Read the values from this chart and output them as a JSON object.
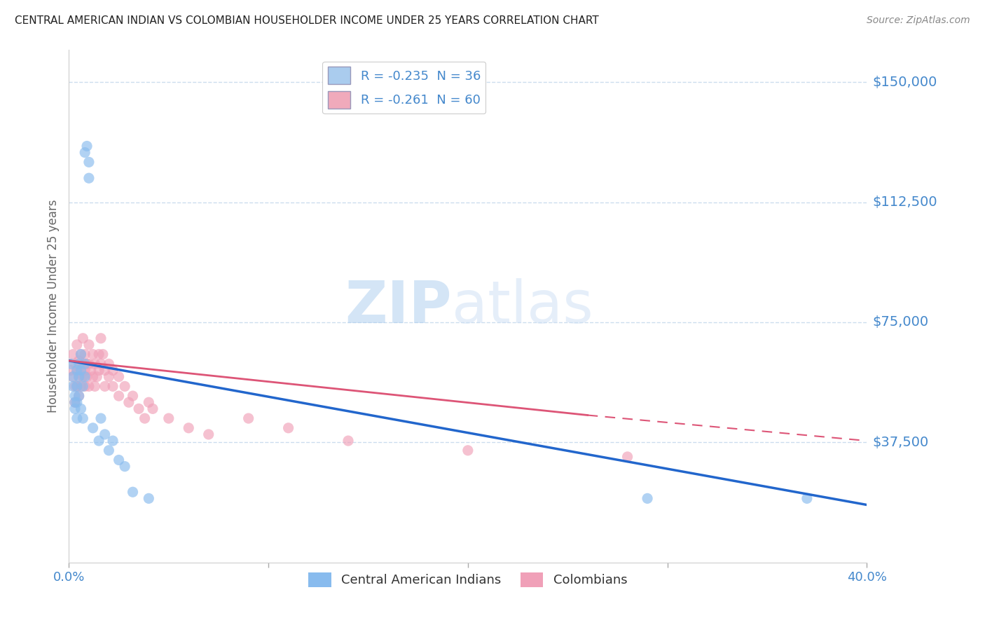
{
  "title": "CENTRAL AMERICAN INDIAN VS COLOMBIAN HOUSEHOLDER INCOME UNDER 25 YEARS CORRELATION CHART",
  "source": "Source: ZipAtlas.com",
  "ylabel": "Householder Income Under 25 years",
  "yticks": [
    0,
    37500,
    75000,
    112500,
    150000
  ],
  "ytick_labels": [
    "",
    "$37,500",
    "$75,000",
    "$112,500",
    "$150,000"
  ],
  "xlim": [
    0.0,
    0.4
  ],
  "ylim": [
    0,
    160000
  ],
  "legend_entries": [
    {
      "label": "R = -0.235  N = 36",
      "color": "#aaccee"
    },
    {
      "label": "R = -0.261  N = 60",
      "color": "#f0aabb"
    }
  ],
  "legend_bottom": [
    "Central American Indians",
    "Colombians"
  ],
  "watermark_zip": "ZIP",
  "watermark_atlas": "atlas",
  "blue_scatter": [
    [
      0.001,
      62000
    ],
    [
      0.002,
      58000
    ],
    [
      0.002,
      55000
    ],
    [
      0.003,
      52000
    ],
    [
      0.003,
      50000
    ],
    [
      0.003,
      48000
    ],
    [
      0.004,
      60000
    ],
    [
      0.004,
      55000
    ],
    [
      0.004,
      50000
    ],
    [
      0.004,
      45000
    ],
    [
      0.005,
      62000
    ],
    [
      0.005,
      58000
    ],
    [
      0.005,
      52000
    ],
    [
      0.006,
      65000
    ],
    [
      0.006,
      60000
    ],
    [
      0.006,
      48000
    ],
    [
      0.007,
      55000
    ],
    [
      0.007,
      45000
    ],
    [
      0.008,
      62000
    ],
    [
      0.008,
      58000
    ],
    [
      0.008,
      128000
    ],
    [
      0.009,
      130000
    ],
    [
      0.01,
      120000
    ],
    [
      0.01,
      125000
    ],
    [
      0.012,
      42000
    ],
    [
      0.015,
      38000
    ],
    [
      0.016,
      45000
    ],
    [
      0.018,
      40000
    ],
    [
      0.02,
      35000
    ],
    [
      0.022,
      38000
    ],
    [
      0.025,
      32000
    ],
    [
      0.028,
      30000
    ],
    [
      0.032,
      22000
    ],
    [
      0.04,
      20000
    ],
    [
      0.29,
      20000
    ],
    [
      0.37,
      20000
    ]
  ],
  "pink_scatter": [
    [
      0.001,
      60000
    ],
    [
      0.002,
      65000
    ],
    [
      0.002,
      58000
    ],
    [
      0.003,
      62000
    ],
    [
      0.003,
      55000
    ],
    [
      0.003,
      50000
    ],
    [
      0.004,
      68000
    ],
    [
      0.004,
      60000
    ],
    [
      0.004,
      55000
    ],
    [
      0.005,
      63000
    ],
    [
      0.005,
      58000
    ],
    [
      0.005,
      52000
    ],
    [
      0.006,
      65000
    ],
    [
      0.006,
      60000
    ],
    [
      0.006,
      55000
    ],
    [
      0.007,
      70000
    ],
    [
      0.007,
      62000
    ],
    [
      0.007,
      58000
    ],
    [
      0.008,
      65000
    ],
    [
      0.008,
      60000
    ],
    [
      0.008,
      55000
    ],
    [
      0.009,
      62000
    ],
    [
      0.009,
      58000
    ],
    [
      0.01,
      68000
    ],
    [
      0.01,
      62000
    ],
    [
      0.01,
      55000
    ],
    [
      0.011,
      60000
    ],
    [
      0.012,
      65000
    ],
    [
      0.012,
      58000
    ],
    [
      0.013,
      62000
    ],
    [
      0.013,
      55000
    ],
    [
      0.014,
      58000
    ],
    [
      0.015,
      65000
    ],
    [
      0.015,
      60000
    ],
    [
      0.016,
      70000
    ],
    [
      0.016,
      62000
    ],
    [
      0.017,
      65000
    ],
    [
      0.018,
      60000
    ],
    [
      0.018,
      55000
    ],
    [
      0.02,
      62000
    ],
    [
      0.02,
      58000
    ],
    [
      0.022,
      60000
    ],
    [
      0.022,
      55000
    ],
    [
      0.025,
      58000
    ],
    [
      0.025,
      52000
    ],
    [
      0.028,
      55000
    ],
    [
      0.03,
      50000
    ],
    [
      0.032,
      52000
    ],
    [
      0.035,
      48000
    ],
    [
      0.038,
      45000
    ],
    [
      0.04,
      50000
    ],
    [
      0.042,
      48000
    ],
    [
      0.05,
      45000
    ],
    [
      0.06,
      42000
    ],
    [
      0.07,
      40000
    ],
    [
      0.09,
      45000
    ],
    [
      0.11,
      42000
    ],
    [
      0.14,
      38000
    ],
    [
      0.2,
      35000
    ],
    [
      0.28,
      33000
    ]
  ],
  "blue_line": {
    "x": [
      0.0,
      0.4
    ],
    "y": [
      63000,
      18000
    ]
  },
  "pink_line_solid": {
    "x": [
      0.0,
      0.26
    ],
    "y": [
      63000,
      46000
    ]
  },
  "pink_line_dash": {
    "x": [
      0.26,
      0.4
    ],
    "y": [
      46000,
      38000
    ]
  },
  "title_color": "#222222",
  "source_color": "#888888",
  "axis_color": "#4488cc",
  "blue_color": "#88bbee",
  "pink_color": "#f0a0b8",
  "blue_line_color": "#2266cc",
  "pink_line_color": "#dd5577",
  "grid_color": "#ccddee",
  "background_color": "#ffffff"
}
